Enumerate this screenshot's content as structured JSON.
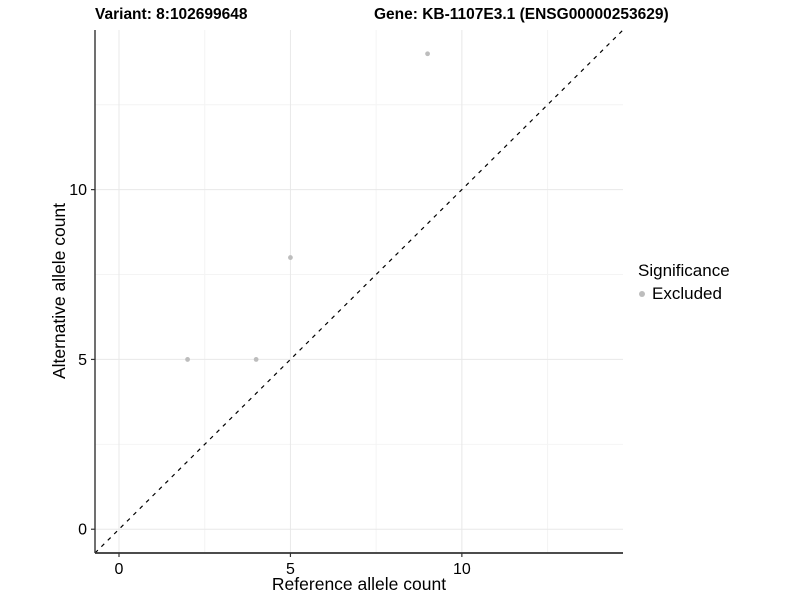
{
  "chart_data": {
    "type": "scatter",
    "title_left": "Variant: 8:102699648",
    "title_right": "Gene: KB-1107E3.1 (ENSG00000253629)",
    "xlabel": "Reference allele count",
    "ylabel": "Alternative allele count",
    "xlim": [
      -0.7,
      14.7
    ],
    "ylim": [
      -0.7,
      14.7
    ],
    "x_major_ticks": [
      0,
      5,
      10
    ],
    "y_major_ticks": [
      0,
      5,
      10
    ],
    "x_minor_gridlines": [
      2.5,
      7.5,
      12.5
    ],
    "y_minor_gridlines": [
      2.5,
      7.5,
      12.5
    ],
    "grid": true,
    "series": [
      {
        "name": "Excluded",
        "color": "#bdbdbd",
        "points": [
          {
            "x": 2,
            "y": 5
          },
          {
            "x": 4,
            "y": 5
          },
          {
            "x": 5,
            "y": 8
          },
          {
            "x": 9,
            "y": 14
          }
        ]
      }
    ],
    "identity_line": {
      "equation": "y = x",
      "style": "dashed",
      "color": "#000000"
    },
    "legend": {
      "title": "Significance",
      "position": "right",
      "items": [
        {
          "label": "Excluded",
          "color": "#bdbdbd"
        }
      ]
    },
    "colors": {
      "background": "#ffffff",
      "grid_major": "#e8e8e8",
      "grid_minor": "#f4f4f4",
      "axis_line": "#333333",
      "point": "#bdbdbd",
      "text": "#000000"
    }
  }
}
